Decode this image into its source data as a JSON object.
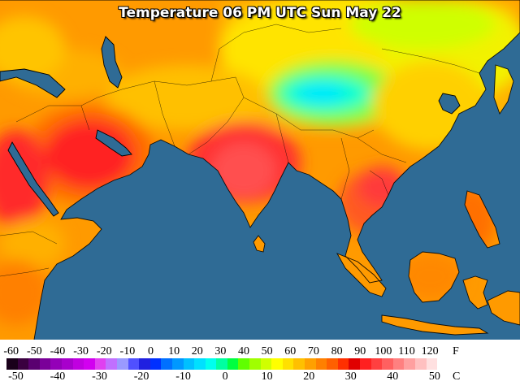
{
  "title": "Temperature 06 PM UTC Sun May 22",
  "legend": {
    "fahrenheit_ticks": [
      "-60",
      "-50",
      "-40",
      "-30",
      "-20",
      "-10",
      "0",
      "10",
      "20",
      "30",
      "40",
      "50",
      "60",
      "70",
      "80",
      "90",
      "100",
      "110",
      "120"
    ],
    "celsius_ticks": [
      "-50",
      "-40",
      "-30",
      "-20",
      "-10",
      "0",
      "10",
      "20",
      "30",
      "40",
      "50"
    ],
    "fahrenheit_unit": "F",
    "celsius_unit": "C",
    "colors": [
      "#1a001a",
      "#3a0040",
      "#5a0070",
      "#7a0099",
      "#9400b8",
      "#a800cc",
      "#c000e0",
      "#d200f0",
      "#e040f0",
      "#c070ff",
      "#9a9aff",
      "#5050ff",
      "#2020e0",
      "#0030ff",
      "#0070ff",
      "#0098ff",
      "#00c0ff",
      "#00e0ff",
      "#00ffee",
      "#00ffa0",
      "#00ff40",
      "#60ff00",
      "#a0ff00",
      "#d0ff00",
      "#ffff00",
      "#ffe000",
      "#ffc000",
      "#ffa000",
      "#ff8000",
      "#ff6000",
      "#ff3000",
      "#e00000",
      "#ff2020",
      "#ff4040",
      "#ff6060",
      "#ff8080",
      "#ffa0a0",
      "#ffc0c0",
      "#ffe0e0",
      "#ffffff"
    ]
  }
}
